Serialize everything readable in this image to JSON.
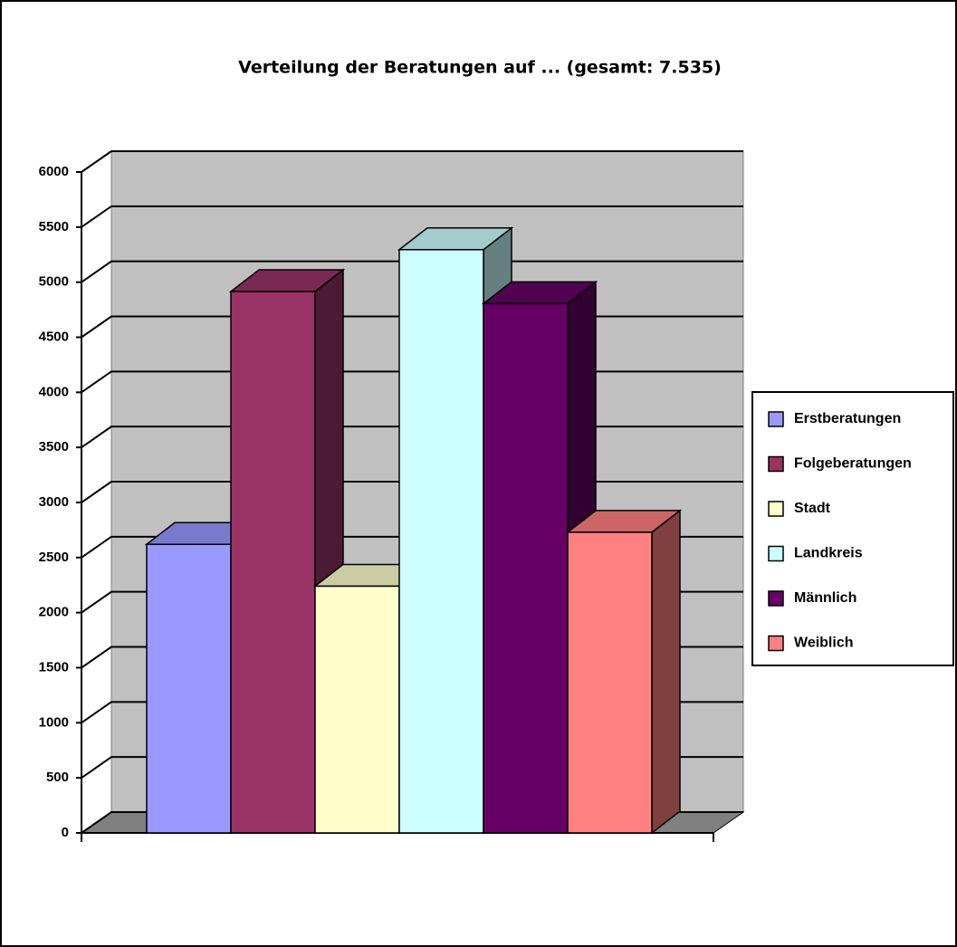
{
  "chart_data": {
    "type": "bar3d",
    "title": "Verteilung der Beratungen auf ... (gesamt: 7.535)",
    "categories": [
      "Erstberatungen",
      "Folgeberatungen",
      "Stadt",
      "Landkreis",
      "Männlich",
      "Weiblich"
    ],
    "values": [
      2620,
      4915,
      2240,
      5295,
      4805,
      2730
    ],
    "colors": [
      "#9999ff",
      "#993366",
      "#ffffcc",
      "#ccffff",
      "#660066",
      "#ff8080"
    ],
    "ylim": [
      0,
      6000
    ],
    "yticks": [
      0,
      500,
      1000,
      1500,
      2000,
      2500,
      3000,
      3500,
      4000,
      4500,
      5000,
      5500,
      6000
    ],
    "grid": true,
    "legend": "right"
  }
}
